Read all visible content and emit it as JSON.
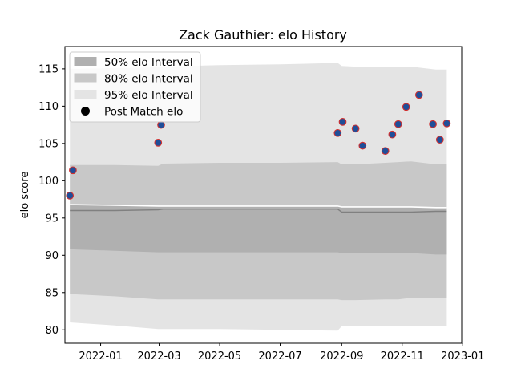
{
  "chart_data": {
    "type": "scatter",
    "title": "Zack Gauthier: elo History",
    "xlabel": "",
    "ylabel": "elo score",
    "xlim": [
      "2021-11-26",
      "2022-12-31"
    ],
    "ylim": [
      78.2,
      118.0
    ],
    "x_ticks": [
      "2022-01",
      "2022-03",
      "2022-05",
      "2022-07",
      "2022-09",
      "2022-11",
      "2023-01"
    ],
    "x_tick_dates": [
      "2022-01-01",
      "2022-03-01",
      "2022-05-01",
      "2022-07-01",
      "2022-09-01",
      "2022-11-01",
      "2023-01-01"
    ],
    "y_ticks": [
      80,
      85,
      90,
      95,
      100,
      105,
      110,
      115
    ],
    "grid": false,
    "legend_position": "top-left",
    "legend": [
      {
        "label": "50% elo Interval",
        "color": "#b0b0b0"
      },
      {
        "label": "80% elo Interval",
        "color": "#c8c8c8"
      },
      {
        "label": "95% elo Interval",
        "color": "#e4e4e4"
      },
      {
        "label": "Post Match elo",
        "color": "#000000"
      }
    ],
    "bands": {
      "dates": [
        "2021-12-01",
        "2022-01-15",
        "2022-02-28",
        "2022-03-05",
        "2022-05-01",
        "2022-07-01",
        "2022-08-28",
        "2022-09-01",
        "2022-09-15",
        "2022-10-15",
        "2022-10-28",
        "2022-11-10",
        "2022-12-05",
        "2022-12-16"
      ],
      "mean": [
        96.0,
        96.0,
        96.1,
        96.2,
        96.2,
        96.2,
        96.2,
        95.8,
        95.8,
        95.8,
        95.8,
        95.8,
        95.9,
        95.9
      ],
      "p50_low": [
        90.8,
        90.6,
        90.4,
        90.4,
        90.4,
        90.4,
        90.4,
        90.3,
        90.3,
        90.3,
        90.3,
        90.3,
        90.1,
        90.1
      ],
      "p50_high": [
        96.8,
        96.7,
        96.6,
        96.6,
        96.6,
        96.6,
        96.6,
        96.5,
        96.5,
        96.5,
        96.5,
        96.5,
        96.4,
        96.4
      ],
      "p80_low": [
        84.8,
        84.5,
        84.1,
        84.1,
        84.1,
        84.1,
        84.1,
        84.0,
        84.0,
        84.1,
        84.1,
        84.3,
        84.3,
        84.3
      ],
      "p80_high": [
        102.1,
        102.1,
        102.0,
        102.3,
        102.4,
        102.4,
        102.5,
        102.2,
        102.2,
        102.4,
        102.5,
        102.6,
        102.2,
        102.2
      ],
      "p95_low": [
        81.0,
        80.6,
        80.1,
        80.1,
        80.1,
        80.0,
        79.9,
        80.5,
        80.5,
        80.5,
        80.5,
        80.5,
        80.5,
        80.5
      ],
      "p95_high": [
        115.0,
        115.1,
        115.2,
        115.3,
        115.5,
        115.6,
        115.8,
        115.4,
        115.3,
        115.3,
        115.3,
        115.3,
        114.9,
        114.9
      ]
    },
    "series": [
      {
        "name": "Post Match elo",
        "x": [
          "2021-12-01",
          "2021-12-04",
          "2022-02-28",
          "2022-03-03",
          "2022-08-28",
          "2022-09-02",
          "2022-09-15",
          "2022-09-22",
          "2022-10-15",
          "2022-10-22",
          "2022-10-28",
          "2022-11-05",
          "2022-11-18",
          "2022-12-02",
          "2022-12-09",
          "2022-12-16"
        ],
        "y": [
          98.0,
          101.4,
          105.1,
          107.5,
          106.4,
          107.9,
          107.0,
          104.7,
          104.0,
          106.2,
          107.6,
          109.9,
          111.5,
          107.6,
          105.5,
          107.7
        ]
      }
    ],
    "colors": {
      "band_50": "#b0b0b0",
      "band_80": "#c8c8c8",
      "band_95": "#e4e4e4",
      "mean_line": "#808080",
      "median_line": "#ffffff",
      "marker_face": "#1f4e99",
      "marker_edge": "#d03030"
    }
  }
}
